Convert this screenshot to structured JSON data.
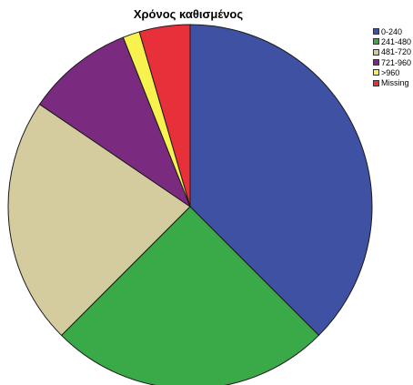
{
  "chart_data": {
    "type": "pie",
    "title": "Χρόνος καθισμένος",
    "legend_placement": "top-right",
    "categories": [
      "0-240",
      "241-480",
      "481-720",
      "721-960",
      ">960",
      "Missing"
    ],
    "values": [
      37.5,
      25.0,
      22.0,
      9.5,
      1.5,
      4.5
    ],
    "colors": [
      "#3f51a3",
      "#3aaa49",
      "#d4cc9e",
      "#7a2a7f",
      "#f7f24e",
      "#e8303a"
    ],
    "start_angle_deg": 0,
    "direction": "clockwise"
  }
}
